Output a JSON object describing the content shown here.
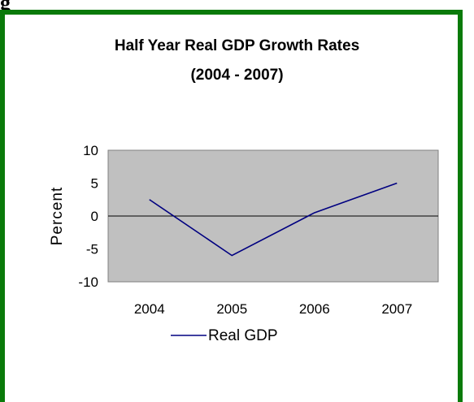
{
  "heading_fragment": "g",
  "chart_data": {
    "type": "line",
    "title_lines": [
      "Half Year Real GDP Growth Rates",
      "(2004 - 2007)"
    ],
    "ylabel": "Percent",
    "xlabel": "",
    "categories": [
      "2004",
      "2005",
      "2006",
      "2007"
    ],
    "series": [
      {
        "name": "Real GDP",
        "values": [
          2.5,
          -6,
          0.5,
          5
        ]
      }
    ],
    "ylim": [
      -10,
      10
    ],
    "yticks": [
      -10,
      -5,
      0,
      5,
      10
    ],
    "ytick_labels": [
      "-10",
      "-5",
      "0",
      "5",
      "10"
    ],
    "legend_position": "bottom",
    "colors": {
      "line": "#000080",
      "plot_area": "#c0c0c0",
      "frame": "#0a7a0a"
    }
  }
}
